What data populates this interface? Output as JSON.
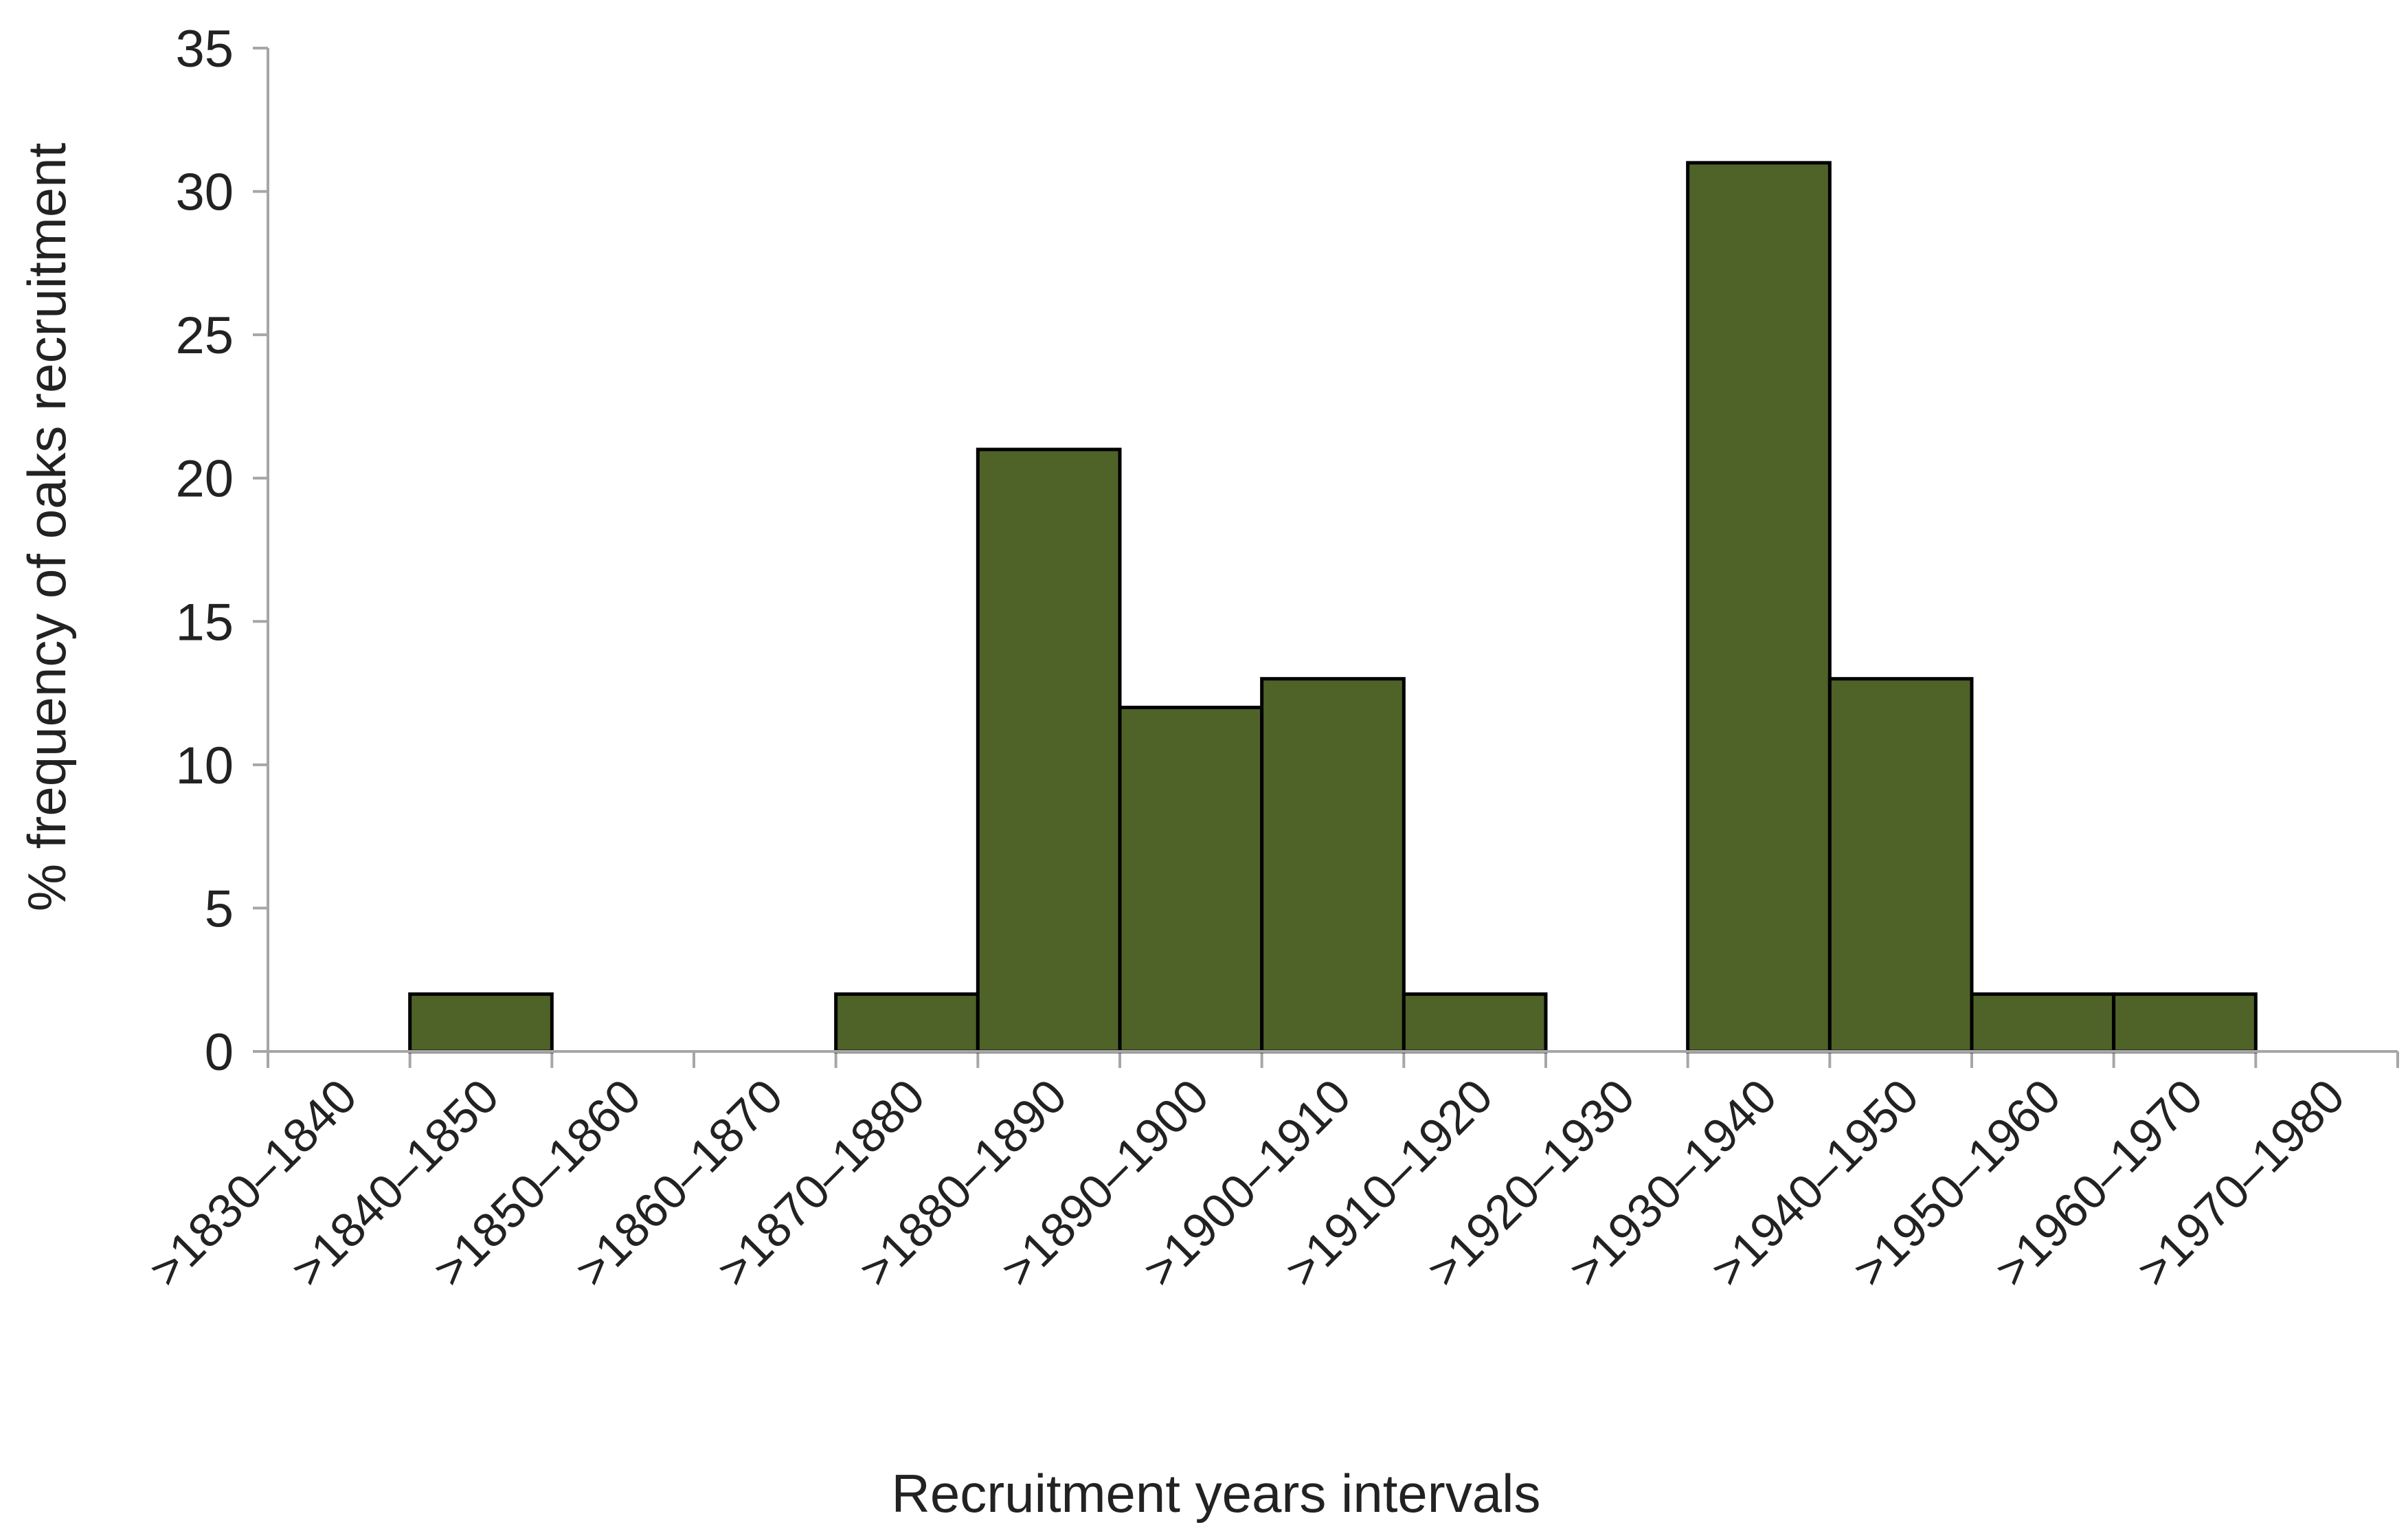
{
  "chart_data": {
    "type": "bar",
    "categories": [
      ">1830–1840",
      ">1840–1850",
      ">1850–1860",
      ">1860–1870",
      ">1870–1880",
      ">1880–1890",
      ">1890–1900",
      ">1900–1910",
      ">1910–1920",
      ">1920–1930",
      ">1930–1940",
      ">1940–1950",
      ">1950–1960",
      ">1960–1970",
      ">1970–1980"
    ],
    "values": [
      0,
      2,
      0,
      0,
      2,
      21,
      12,
      13,
      2,
      0,
      31,
      13,
      2,
      2,
      0
    ],
    "xlabel": "Recruitment years intervals",
    "ylabel": "% frequency of oaks recruitment",
    "ylim": [
      0,
      35
    ],
    "yticks": [
      0,
      5,
      10,
      15,
      20,
      25,
      30,
      35
    ],
    "grid": false,
    "bar_color": "#4f6228",
    "bar_edge_color": "#000000",
    "axis_color": "#a6a6a6"
  }
}
